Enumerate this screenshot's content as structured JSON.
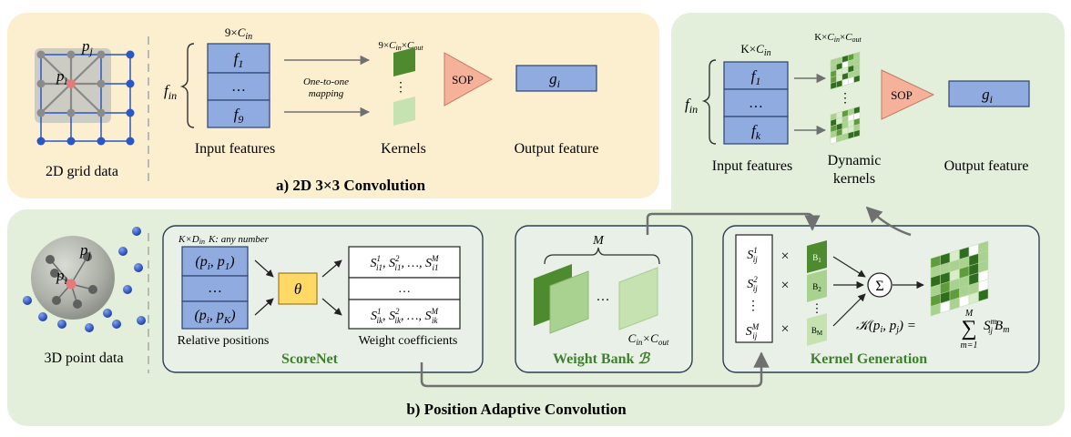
{
  "panel_a": {
    "title": "a) 2D 3×3 Convolution",
    "grid_label": "2D grid data",
    "pj": "p",
    "pj_sub": "j",
    "pi": "p",
    "pi_sub": "i",
    "fin": "f",
    "fin_sub": "in",
    "dim_top_pre": "9×",
    "dim_top_c": "C",
    "dim_top_sub": "in",
    "features": [
      {
        "f": "f",
        "sub": "1"
      },
      {
        "f": "…",
        "sub": ""
      },
      {
        "f": "f",
        "sub": "9"
      }
    ],
    "mapping_line1": "One-to-one",
    "mapping_line2": "mapping",
    "kernel_dim_pre": "9×",
    "kernel_dim_c1": "C",
    "kernel_dim_sub1": "in",
    "kernel_dim_x": "×",
    "kernel_dim_c2": "C",
    "kernel_dim_sub2": "out",
    "kernel_dots": "⋮",
    "sop": "SOP",
    "out_g": "g",
    "out_sub": "i",
    "input_label": "Input features",
    "kernels_label": "Kernels",
    "output_label": "Output feature"
  },
  "panel_top_right": {
    "dim_top_pre": "K×",
    "dim_top_c": "C",
    "dim_top_sub": "in",
    "fin": "f",
    "fin_sub": "in",
    "features": [
      {
        "f": "f",
        "sub": "1"
      },
      {
        "f": "…",
        "sub": ""
      },
      {
        "f": "f",
        "sub": "k"
      }
    ],
    "kernel_dim_pre": "K×",
    "kernel_dim_c1": "C",
    "kernel_dim_sub1": "in",
    "kernel_dim_x": "×",
    "kernel_dim_c2": "C",
    "kernel_dim_sub2": "out",
    "kernel_dots": "⋮",
    "sop": "SOP",
    "out_g": "g",
    "out_sub": "i",
    "input_label": "Input features",
    "dyn_line1": "Dynamic",
    "dyn_line2": "kernels",
    "output_label": "Output feature"
  },
  "panel_b": {
    "title": "b) Position Adaptive Convolution",
    "point_label": "3D point data",
    "pj": "p",
    "pj_sub": "j",
    "pi": "p",
    "pi_sub": "i",
    "scorenet": {
      "title": "ScoreNet",
      "dim_text": "K×D",
      "dim_sub": "in",
      "any_text": "K: any number",
      "rel_rows": [
        "(p",
        "…",
        "(p"
      ],
      "rel_row1_a": "(p",
      "rel_row1_a_sub": "i",
      "rel_row1_b": ", p",
      "rel_row1_b_sub": "1",
      "rel_row1_c": ")",
      "rel_row2": "…",
      "rel_row3_a": "(p",
      "rel_row3_a_sub": "i",
      "rel_row3_b": ", p",
      "rel_row3_b_sub": "K",
      "rel_row3_c": ")",
      "theta": "θ",
      "coef_row1": "S",
      "coef_row2": "…",
      "coef_row3": "S",
      "rel_label": "Relative positions",
      "coef_label": "Weight coefficients"
    },
    "weight_bank": {
      "title": "Weight Bank ",
      "title_symbol": "ℬ",
      "m": "M",
      "dots": "…",
      "dim_c1": "C",
      "dim_sub1": "in",
      "dim_x": "×",
      "dim_c2": "C",
      "dim_sub2": "out"
    },
    "kernel_gen": {
      "title": "Kernel Generation",
      "s_rows": [
        "S",
        "S",
        "⋮",
        "S"
      ],
      "times": "×",
      "b_labels": [
        "B",
        "B",
        "B"
      ],
      "b_subs": [
        "1",
        "2",
        "M"
      ],
      "b_dots": "⋮",
      "sum": "Σ",
      "formula_lhs": "𝒦(p",
      "formula_mid": ", p",
      "formula_rhs": ") =",
      "formula_sum": "∑",
      "formula_top": "M",
      "formula_bottom": "m=1",
      "formula_term": "S",
      "formula_b": "B"
    }
  },
  "colors": {
    "panel_a_bg": "#fcefcf",
    "panel_green_bg": "#e3efdb",
    "feature_fill": "#8fabe0",
    "feature_stroke": "#2d4270",
    "kernel_dark": "#4e8a2e",
    "kernel_light": "#c5e2b0",
    "sop_fill": "#f6b19b",
    "theta_fill": "#ffd966",
    "title_green": "#3f7f2e"
  }
}
